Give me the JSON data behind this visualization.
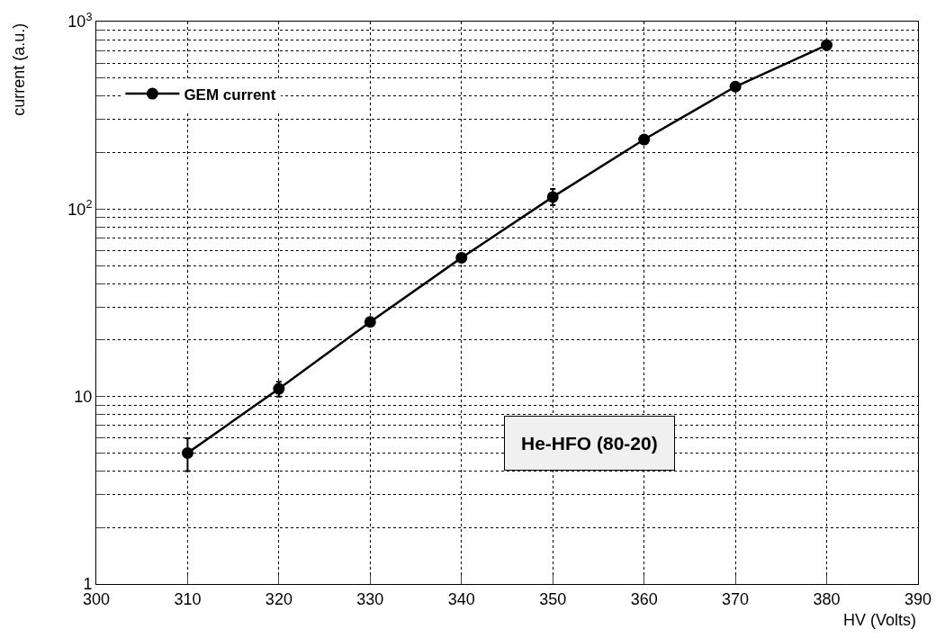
{
  "chart_data": {
    "type": "line",
    "xlabel": "HV (Volts)",
    "ylabel": "current (a.u.)",
    "annotations": [
      "He-HFO (80-20)"
    ],
    "x": [
      310,
      320,
      330,
      340,
      350,
      360,
      370,
      380
    ],
    "series": [
      {
        "name": "GEM current",
        "color": "#000000",
        "values": [
          5,
          11,
          25,
          55,
          116,
          235,
          450,
          750
        ],
        "errors": [
          [
            4,
            6
          ],
          [
            10,
            12
          ],
          null,
          null,
          [
            105,
            128
          ],
          null,
          null,
          null
        ]
      }
    ],
    "log": "y",
    "xlim": [
      300,
      390
    ],
    "ylim": [
      1,
      1000
    ],
    "xticks": [
      300,
      310,
      320,
      330,
      340,
      350,
      360,
      370,
      380,
      390
    ],
    "yticks": [
      1,
      {
        "value": 2,
        "label": null
      },
      {
        "value": 3,
        "label": null
      },
      {
        "value": 4,
        "label": null
      },
      {
        "value": 5,
        "label": null
      },
      {
        "value": 6,
        "label": null
      },
      {
        "value": 7,
        "label": null
      },
      {
        "value": 8,
        "label": null
      },
      {
        "value": 9,
        "label": null
      },
      10,
      {
        "value": 20,
        "label": null
      },
      {
        "value": 30,
        "label": null
      },
      {
        "value": 40,
        "label": null
      },
      {
        "value": 50,
        "label": null
      },
      {
        "value": 60,
        "label": null
      },
      {
        "value": 70,
        "label": null
      },
      {
        "value": 80,
        "label": null
      },
      {
        "value": 90,
        "label": null
      },
      {
        "value": 100,
        "label": "10$^{2}$"
      },
      {
        "value": 200,
        "label": null
      },
      {
        "value": 300,
        "label": null
      },
      {
        "value": 400,
        "label": null
      },
      {
        "value": 500,
        "label": null
      },
      {
        "value": 600,
        "label": null
      },
      {
        "value": 700,
        "label": null
      },
      {
        "value": 800,
        "label": null
      },
      {
        "value": 900,
        "label": null
      },
      {
        "value": 1000,
        "label": "10$^{3}$"
      }
    ],
    "grid": true,
    "legend": "top left",
    "marker": "circle",
    "line_style": "solid"
  }
}
